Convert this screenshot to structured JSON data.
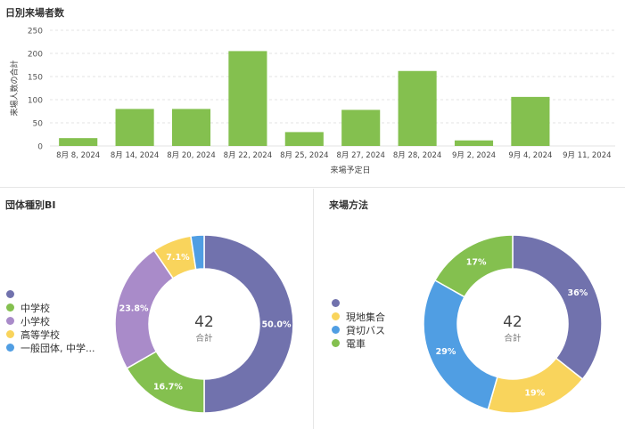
{
  "colors": {
    "green": "#84c04f",
    "purple": "#7172ad",
    "lavender": "#a98bc9",
    "yellow": "#f9d45c",
    "blue": "#509ee3"
  },
  "bar_panel": {
    "title": "日別来場者数"
  },
  "group_panel": {
    "title": "団体種別BI",
    "center_value": "42",
    "center_label": "合計"
  },
  "method_panel": {
    "title": "来場方法",
    "center_value": "42",
    "center_label": "合計"
  },
  "chart_data": [
    {
      "type": "bar",
      "title": "日別来場者数",
      "xlabel": "来場予定日",
      "ylabel": "来場人数の合計",
      "ylim": [
        0,
        250
      ],
      "yticks": [
        0,
        50,
        100,
        150,
        200,
        250
      ],
      "categories": [
        "8月 8, 2024",
        "8月 14, 2024",
        "8月 20, 2024",
        "8月 22, 2024",
        "8月 25, 2024",
        "8月 27, 2024",
        "8月 28, 2024",
        "9月 2, 2024",
        "9月 4, 2024",
        "9月 11, 2024"
      ],
      "values": [
        17,
        80,
        80,
        205,
        30,
        78,
        162,
        12,
        106,
        0
      ],
      "color": "#84c04f",
      "grid": true
    },
    {
      "type": "pie",
      "title": "団体種別BI",
      "donut": true,
      "slices": [
        {
          "label": "",
          "value": 50.0,
          "display": "50.0%",
          "color": "#7172ad"
        },
        {
          "label": "中学校",
          "value": 16.7,
          "display": "16.7%",
          "color": "#84c04f"
        },
        {
          "label": "小学校",
          "value": 23.8,
          "display": "23.8%",
          "color": "#a98bc9"
        },
        {
          "label": "高等学校",
          "value": 7.1,
          "display": "7.1%",
          "color": "#f9d45c"
        },
        {
          "label": "一般団体, 中学...",
          "value": 2.4,
          "display": "",
          "color": "#509ee3"
        }
      ],
      "legend_position": "left"
    },
    {
      "type": "pie",
      "title": "来場方法",
      "donut": true,
      "slices": [
        {
          "label": "",
          "value": 36,
          "display": "36%",
          "color": "#7172ad"
        },
        {
          "label": "現地集合",
          "value": 19,
          "display": "19%",
          "color": "#f9d45c"
        },
        {
          "label": "貸切バス",
          "value": 29,
          "display": "29%",
          "color": "#509ee3"
        },
        {
          "label": "電車",
          "value": 17,
          "display": "17%",
          "color": "#84c04f"
        }
      ],
      "legend_position": "left"
    }
  ]
}
